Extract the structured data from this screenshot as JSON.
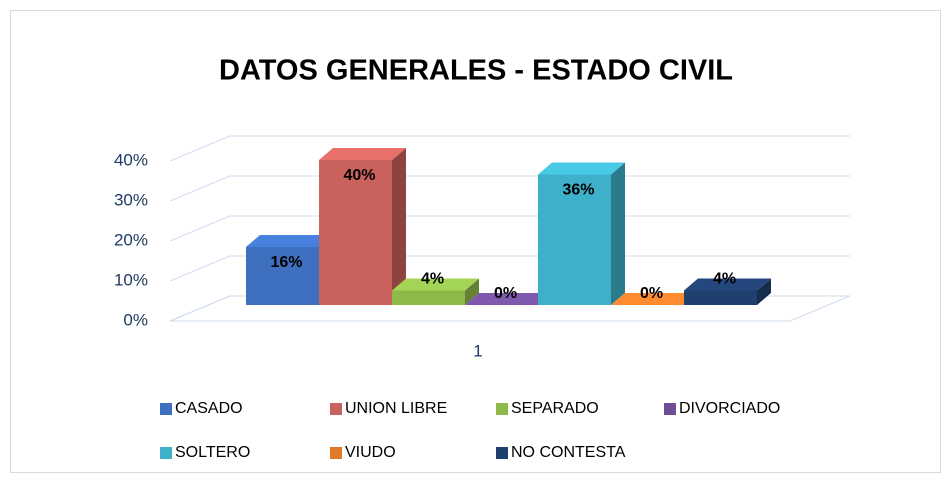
{
  "chart_data": {
    "type": "bar",
    "title": "DATOS GENERALES - ESTADO CIVIL",
    "categories": [
      "1"
    ],
    "series": [
      {
        "name": "CASADO",
        "color": "#3f70c0",
        "values": [
          16
        ],
        "value_labels": [
          "16%"
        ]
      },
      {
        "name": "UNION LIBRE",
        "color": "#c9615c",
        "values": [
          40
        ],
        "value_labels": [
          "40%"
        ]
      },
      {
        "name": "SEPARADO",
        "color": "#8fb84a",
        "values": [
          4
        ],
        "value_labels": [
          "4%"
        ]
      },
      {
        "name": "DIVORCIADO",
        "color": "#6e4d96",
        "values": [
          0
        ],
        "value_labels": [
          "0%"
        ]
      },
      {
        "name": "SOLTERO",
        "color": "#3fb0c9",
        "values": [
          36
        ],
        "value_labels": [
          "36%"
        ]
      },
      {
        "name": "VIUDO",
        "color": "#e07a2a",
        "values": [
          0
        ],
        "value_labels": [
          "0%"
        ]
      },
      {
        "name": "NO CONTESTA",
        "color": "#1f3f6e",
        "values": [
          4
        ],
        "value_labels": [
          "4%"
        ]
      }
    ],
    "ylim": [
      0,
      40
    ],
    "yticks": [
      {
        "value": 0,
        "label": "0%"
      },
      {
        "value": 10,
        "label": "10%"
      },
      {
        "value": 20,
        "label": "20%"
      },
      {
        "value": 30,
        "label": "30%"
      },
      {
        "value": 40,
        "label": "40%"
      }
    ],
    "grid": true,
    "legend": "bottom"
  }
}
